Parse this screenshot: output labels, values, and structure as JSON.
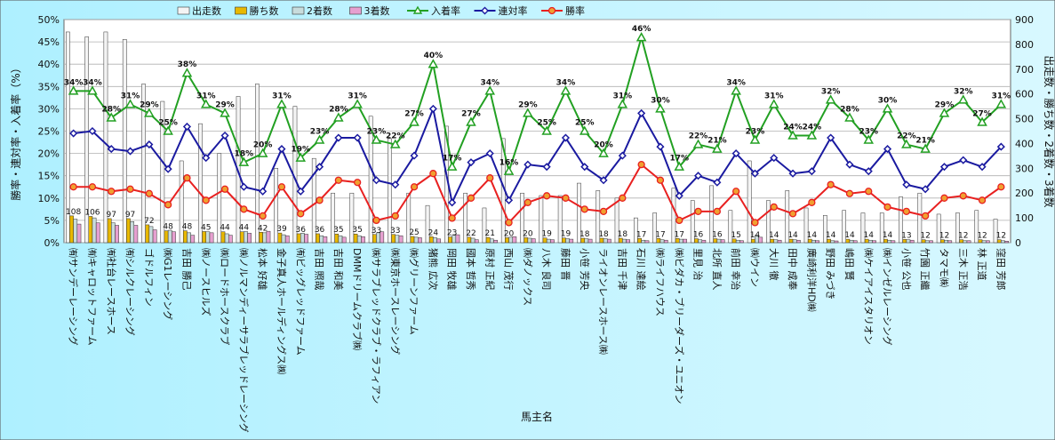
{
  "chart_data": {
    "type": "bar",
    "xlabel": "馬主名",
    "ylabel_left": "勝率・連対率・入着率（%）",
    "ylabel_right": "出走数・勝ち数・2着数・3着数",
    "ylim_left": [
      0,
      50
    ],
    "ylim_right": [
      0,
      900
    ],
    "ticks_left": [
      "0%",
      "5%",
      "10%",
      "15%",
      "20%",
      "25%",
      "30%",
      "35%",
      "40%",
      "45%",
      "50%"
    ],
    "ticks_right": [
      "0",
      "100",
      "200",
      "300",
      "400",
      "500",
      "600",
      "700",
      "800",
      "900"
    ],
    "legend_position": "top",
    "legend": [
      "出走数",
      "勝ち数",
      "2着数",
      "3着数",
      "入着率",
      "連対率",
      "勝率"
    ],
    "categories": [
      "㈲サンデーレーシング",
      "㈲キャロットファーム",
      "㈲社台レースホース",
      "㈲シルクレーシング",
      "ゴドルフィン",
      "㈱G1レーシング",
      "吉田 勝己",
      "㈱ノースヒルズ",
      "㈱ロードホースクラブ",
      "㈱ノルマンディーサラブレッドレーシング",
      "松本 好雄",
      "金子真人ホールディングス㈱",
      "㈲ビッグレッドファーム",
      "吉田 照哉",
      "吉田 和美",
      "DMMドリームクラブ㈱",
      "㈱サラブレッドクラブ・ラフィアン",
      "㈱東京ホースレーシング",
      "㈱グリーンファーム",
      "猪熊 広次",
      "岡田 牧雄",
      "國本 哲秀",
      "原村 正紀",
      "西山 茂行",
      "㈱ダノックス",
      "八木 良司",
      "藤田 晋",
      "小笹 芳央",
      "ライオンレースホース㈱",
      "吉田 千津",
      "石川 達絵",
      "㈱ライフハウス",
      "㈱ビダカ・ブリーダーズ・ユニオン",
      "里見 治",
      "北所 直人",
      "前田 幸治",
      "㈱ウイン",
      "大川 徹",
      "田中 成奉",
      "廣崎利洋HD㈱",
      "野田 みづき",
      "嶋田 賢",
      "㈱ケイアイスタリオン",
      "㈱インゼルレーシング",
      "小笹 公也",
      "竹園 正繼",
      "タマモ㈱",
      "三木 正浩",
      "林 正道",
      "窪田 芳郎"
    ],
    "series": [
      {
        "name": "出走数",
        "axis": "right",
        "color": "#f4f4f4",
        "values": [
          850,
          830,
          850,
          820,
          640,
          570,
          330,
          480,
          360,
          590,
          640,
          300,
          550,
          340,
          200,
          200,
          510,
          420,
          200,
          150,
          470,
          200,
          140,
          420,
          200,
          190,
          190,
          240,
          210,
          180,
          100,
          120,
          220,
          170,
          230,
          130,
          330,
          170,
          210,
          140,
          110,
          130,
          120,
          120,
          185,
          200,
          115,
          120,
          130,
          95
        ]
      },
      {
        "name": "勝ち数",
        "axis": "right",
        "color": "#e8b800",
        "values": [
          108,
          106,
          97,
          97,
          72,
          48,
          48,
          45,
          44,
          44,
          42,
          39,
          36,
          36,
          35,
          35,
          33,
          33,
          25,
          24,
          23,
          22,
          21,
          20,
          20,
          19,
          19,
          18,
          18,
          18,
          17,
          17,
          17,
          16,
          16,
          15,
          14,
          14,
          14,
          14,
          14,
          14,
          14,
          14,
          13,
          12,
          12,
          12,
          12,
          12
        ]
      },
      {
        "name": "2着数",
        "axis": "right",
        "color": "#c8dcdc",
        "values": [
          95,
          100,
          80,
          85,
          65,
          50,
          40,
          44,
          36,
          45,
          40,
          32,
          38,
          28,
          28,
          28,
          40,
          30,
          22,
          20,
          30,
          18,
          15,
          22,
          18,
          14,
          16,
          16,
          16,
          14,
          10,
          12,
          14,
          12,
          14,
          10,
          30,
          12,
          12,
          10,
          8,
          10,
          10,
          10,
          12,
          8,
          10,
          8,
          8,
          8
        ]
      },
      {
        "name": "3着数",
        "axis": "right",
        "color": "#e6a0d0",
        "values": [
          75,
          80,
          70,
          70,
          52,
          44,
          30,
          40,
          30,
          38,
          46,
          28,
          34,
          24,
          22,
          24,
          44,
          28,
          20,
          15,
          32,
          12,
          10,
          24,
          16,
          12,
          14,
          14,
          14,
          12,
          8,
          10,
          14,
          10,
          12,
          8,
          22,
          10,
          10,
          8,
          7,
          8,
          8,
          8,
          10,
          8,
          8,
          8,
          8,
          6
        ]
      },
      {
        "name": "入着率",
        "axis": "left",
        "color": "#22a022",
        "values": [
          34,
          34,
          28,
          31,
          29,
          25,
          38,
          31,
          29,
          18,
          20,
          31,
          19,
          23,
          28,
          31,
          23,
          22,
          27,
          40,
          17,
          27,
          34,
          16,
          29,
          25,
          34,
          25,
          20,
          31,
          46,
          30,
          17,
          22,
          21,
          34,
          23,
          31,
          24,
          24,
          32,
          28,
          23,
          30,
          22,
          21,
          29,
          32,
          27,
          31
        ]
      },
      {
        "name": "連対率",
        "axis": "left",
        "color": "#1a1aa0",
        "values": [
          24.5,
          25,
          21,
          20.5,
          22,
          16.5,
          26,
          19,
          24,
          12.5,
          11.5,
          21,
          11.5,
          17,
          23.5,
          23.5,
          14,
          13,
          19.5,
          30,
          9,
          18,
          20,
          9.5,
          17.5,
          17,
          23.5,
          17,
          14,
          19.5,
          29,
          21.5,
          10.5,
          15,
          13.5,
          20,
          15.5,
          19,
          15.5,
          16,
          23.5,
          17.5,
          16,
          21,
          13,
          12,
          17,
          18.5,
          17,
          21.5
        ]
      },
      {
        "name": "勝率",
        "axis": "left",
        "color": "#e82020",
        "values": [
          12.5,
          12.5,
          11.5,
          12,
          11,
          8.5,
          14.5,
          9.5,
          12,
          7.5,
          6,
          12.5,
          6.5,
          9.5,
          14,
          13.5,
          5,
          6,
          12.5,
          15.5,
          5.5,
          10,
          14.5,
          4.5,
          9,
          10.5,
          10,
          7.5,
          7,
          10,
          17.5,
          14,
          5,
          7,
          7,
          11.5,
          4.5,
          8,
          6.5,
          9,
          13,
          11,
          11.5,
          8,
          7,
          6,
          10,
          10.5,
          9.5,
          12.5
        ]
      }
    ],
    "bar_labels": [
      "108",
      "106",
      "97",
      "97",
      "72",
      "48",
      "48",
      "45",
      "44",
      "44",
      "42",
      "39",
      "36",
      "36",
      "35",
      "35",
      "33",
      "33",
      "25",
      "24",
      "23",
      "22",
      "21",
      "20",
      "20",
      "19",
      "19",
      "18",
      "18",
      "18",
      "17",
      "17",
      "17",
      "16",
      "16",
      "15",
      "14",
      "14",
      "14",
      "14",
      "14",
      "14",
      "14",
      "14",
      "13",
      "12",
      "12",
      "12",
      "12",
      "12"
    ],
    "point_labels": [
      "34%",
      "34%",
      "28%",
      "31%",
      "29%",
      "25%",
      "38%",
      "31%",
      "29%",
      "18%",
      "20%",
      "31%",
      "19%",
      "23%",
      "28%",
      "31%",
      "23%",
      "22%",
      "27%",
      "40%",
      "17%",
      "27%",
      "34%",
      "16%",
      "29%",
      "25%",
      "34%",
      "25%",
      "20%",
      "31%",
      "46%",
      "30%",
      "17%",
      "22%",
      "21%",
      "34%",
      "23%",
      "31%",
      "24%",
      "24%",
      "32%",
      "28%",
      "23%",
      "30%",
      "22%",
      "21%",
      "29%",
      "32%",
      "27%",
      "31%"
    ]
  }
}
